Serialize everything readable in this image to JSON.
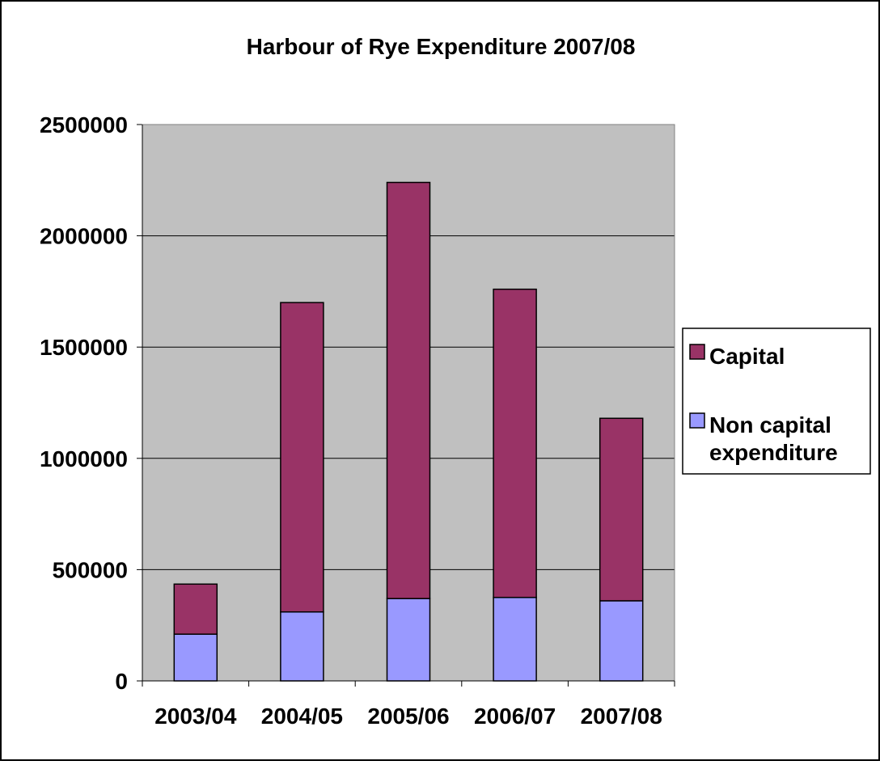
{
  "colors": {
    "plot_bg": "#C0C0C0",
    "capital": "#993366",
    "non_capital": "#9999FF",
    "gridline": "#000000",
    "border": "#000000"
  },
  "chart_data": {
    "type": "bar",
    "stacked": true,
    "title": "Harbour of Rye Expenditure 2007/08",
    "categories": [
      "2003/04",
      "2004/05",
      "2005/06",
      "2006/07",
      "2007/08"
    ],
    "series": [
      {
        "name": "Non capital expenditure",
        "values": [
          210000,
          310000,
          370000,
          375000,
          360000
        ]
      },
      {
        "name": "Capital",
        "values": [
          225000,
          1390000,
          1870000,
          1385000,
          820000
        ]
      }
    ],
    "ylim": [
      0,
      2500000
    ],
    "yticks": [
      "0",
      "500000",
      "1000000",
      "1500000",
      "2000000",
      "2500000"
    ],
    "grid": true,
    "legend": {
      "position": "right",
      "entries": [
        {
          "series": "Capital",
          "lines": [
            "Capital"
          ]
        },
        {
          "series": "Non capital expenditure",
          "lines": [
            "Non capital",
            "expenditure"
          ]
        }
      ]
    }
  }
}
